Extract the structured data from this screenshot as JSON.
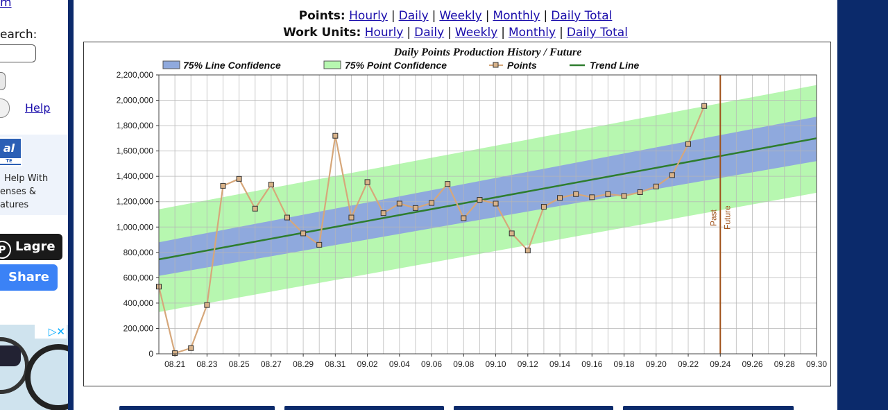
{
  "sidebar": {
    "top_link": "m",
    "search_label": "earch:",
    "help_link": "Help",
    "promo_logo": "al",
    "promo_logo_sub": "TE",
    "promo_lines": [
      "Help With",
      "enses &",
      "atures"
    ],
    "pinterest_label": "Lagre",
    "share_label": "Share",
    "ad_close": "▷✕"
  },
  "nav": {
    "points_label": "Points:",
    "workunits_label": "Work Units:",
    "links": [
      "Hourly",
      "Daily",
      "Weekly",
      "Monthly",
      "Daily Total"
    ],
    "separator": "|"
  },
  "chart_data": {
    "type": "line",
    "title": "Daily Points Production History / Future",
    "legend": [
      "75% Line Confidence",
      "75% Point Confidence",
      "Points",
      "Trend Line"
    ],
    "legend_placement": "top",
    "grid": true,
    "ylim": [
      0,
      2200000
    ],
    "yticks": [
      "2,200,000",
      "2,000,000",
      "1,800,000",
      "1,600,000",
      "1,400,000",
      "1,200,000",
      "1,000,000",
      "800,000",
      "600,000",
      "400,000",
      "200,000",
      "0"
    ],
    "ytick_values": [
      2200000,
      2000000,
      1800000,
      1600000,
      1400000,
      1200000,
      1000000,
      800000,
      600000,
      400000,
      200000,
      0
    ],
    "x_start": "08.20",
    "x_end": "09.30",
    "xtick_labels": [
      "08.21",
      "08.23",
      "08.25",
      "08.27",
      "08.29",
      "08.31",
      "09.02",
      "09.04",
      "09.06",
      "09.08",
      "09.10",
      "09.12",
      "09.14",
      "09.16",
      "09.18",
      "09.20",
      "09.22",
      "09.24",
      "09.26",
      "09.28",
      "09.30"
    ],
    "x_dates": [
      "08.20",
      "08.21",
      "08.22",
      "08.23",
      "08.24",
      "08.25",
      "08.26",
      "08.27",
      "08.28",
      "08.29",
      "08.30",
      "08.31",
      "09.01",
      "09.02",
      "09.03",
      "09.04",
      "09.05",
      "09.06",
      "09.07",
      "09.08",
      "09.09",
      "09.10",
      "09.11",
      "09.12",
      "09.13",
      "09.14",
      "09.15",
      "09.16",
      "09.17",
      "09.18",
      "09.19",
      "09.20",
      "09.21",
      "09.22",
      "09.23",
      "09.24",
      "09.25",
      "09.26",
      "09.27",
      "09.28",
      "09.29",
      "09.30"
    ],
    "points": [
      530000,
      5000,
      45000,
      385000,
      1325000,
      1380000,
      1145000,
      1335000,
      1075000,
      950000,
      860000,
      1720000,
      1075000,
      1355000,
      1110000,
      1185000,
      1150000,
      1190000,
      1340000,
      1070000,
      1215000,
      1185000,
      950000,
      815000,
      1160000,
      1230000,
      1260000,
      1235000,
      1260000,
      1245000,
      1275000,
      1320000,
      1410000,
      1655000,
      1955000
    ],
    "trend_start": 745000,
    "trend_end": 1700000,
    "line_conf_start": [
      615000,
      880000
    ],
    "line_conf_end": [
      1520000,
      1870000
    ],
    "point_conf_start": [
      330000,
      1140000
    ],
    "point_conf_end": [
      1270000,
      2120000
    ],
    "divider_date": "09.24",
    "divider_labels": [
      "Past",
      "Future"
    ],
    "colors": {
      "points_line": "#d6a77a",
      "points_marker_fill": "#d9b38a",
      "points_marker_stroke": "#333333",
      "trend": "#2e7d2e",
      "line_confidence": "#8fa9dd",
      "point_confidence": "#b7f7b0",
      "divider": "#a0521a"
    }
  }
}
